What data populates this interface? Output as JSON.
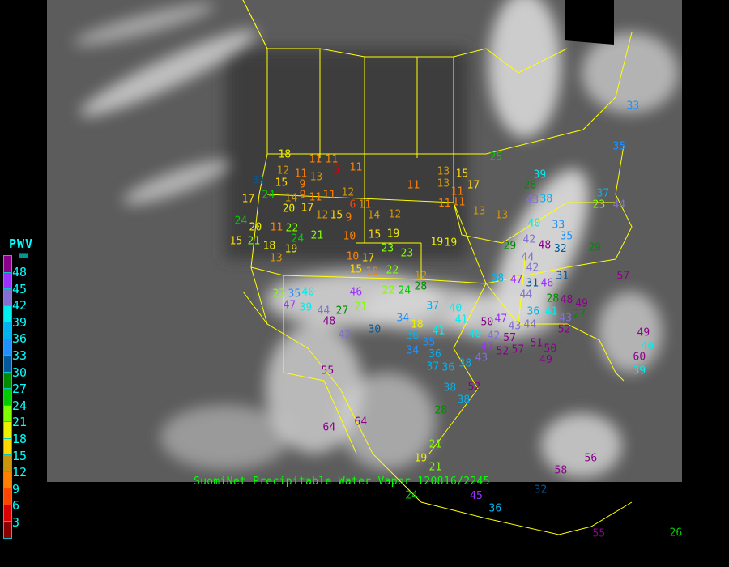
{
  "map": {
    "caption": "SuomiNet Precipitable Water Vapor 120816/2245",
    "border_color": "#ffff00",
    "background": "#000000"
  },
  "legend": {
    "title": "PWV",
    "unit": "mm",
    "labels": [
      "48",
      "45",
      "42",
      "39",
      "36",
      "33",
      "30",
      "27",
      "24",
      "21",
      "18",
      "15",
      "12",
      "9",
      "6",
      "3"
    ],
    "colors": [
      "#8b008b",
      "#9b30ff",
      "#8470d0",
      "#00eeee",
      "#00b2ee",
      "#1e90ff",
      "#005a9c",
      "#008b00",
      "#00cd00",
      "#7fff00",
      "#eeee00",
      "#ffd700",
      "#cd950c",
      "#ff8000",
      "#ff4500",
      "#dd0000",
      "#8b0000"
    ]
  },
  "stations": [
    "18",
    "11",
    "11",
    "5",
    "11",
    "12",
    "11",
    "13",
    "9",
    "15",
    "31",
    "24",
    "9",
    "14",
    "11",
    "11",
    "12",
    "6",
    "11",
    "17",
    "20",
    "17",
    "12",
    "15",
    "9",
    "14",
    "12",
    "24",
    "20",
    "11",
    "22",
    "24",
    "21",
    "19",
    "15",
    "21",
    "18",
    "13",
    "10",
    "15",
    "19",
    "11",
    "13",
    "15",
    "17",
    "13",
    "11",
    "11",
    "11",
    "13",
    "13",
    "19",
    "19",
    "10",
    "17",
    "23",
    "23",
    "15",
    "10",
    "22",
    "12",
    "22",
    "24",
    "28",
    "23",
    "35",
    "40",
    "46",
    "47",
    "39",
    "44",
    "27",
    "48",
    "21",
    "30",
    "34",
    "36",
    "37",
    "42",
    "18",
    "55",
    "28",
    "41",
    "35",
    "36",
    "34",
    "37",
    "36",
    "38",
    "38",
    "64",
    "64",
    "19",
    "21",
    "21",
    "25",
    "39",
    "28",
    "43",
    "38",
    "40",
    "42",
    "44",
    "48",
    "42",
    "44",
    "31",
    "38",
    "29",
    "33",
    "35",
    "32",
    "31",
    "28",
    "27",
    "29",
    "36",
    "47",
    "43",
    "46",
    "41",
    "43",
    "48",
    "49",
    "44",
    "47",
    "40",
    "41",
    "40",
    "42",
    "47",
    "52",
    "52",
    "50",
    "51",
    "49",
    "50",
    "57",
    "43",
    "49",
    "40",
    "39",
    "38",
    "52",
    "57",
    "57",
    "60",
    "56",
    "58",
    "32",
    "36",
    "24",
    "45",
    "55",
    "26",
    "35",
    "33",
    "23",
    "37",
    "44"
  ]
}
